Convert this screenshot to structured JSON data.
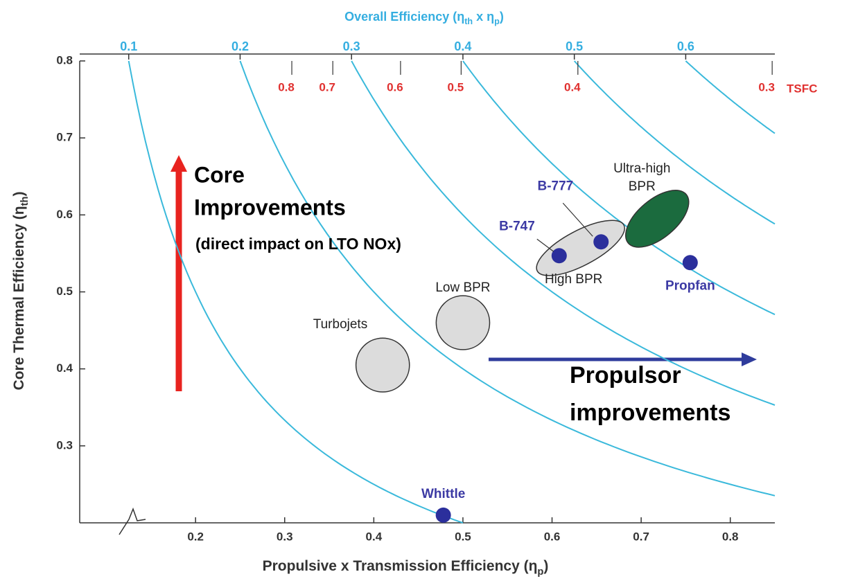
{
  "chart_data": {
    "type": "scatter",
    "title": [
      "Overall Efficiency (η",
      "th",
      " x η",
      "p",
      ")"
    ],
    "xlabel": [
      "Propulsive x Transmission Efficiency (η",
      "p",
      ")"
    ],
    "ylabel": [
      "Core Thermal Efficiency (η",
      "th",
      ")"
    ],
    "xlim": [
      0.07,
      0.85
    ],
    "ylim": [
      0.2,
      0.8
    ],
    "xticks": [
      0.2,
      0.3,
      0.4,
      0.5,
      0.6,
      0.7,
      0.8
    ],
    "yticks": [
      0.3,
      0.4,
      0.5,
      0.6,
      0.7,
      0.8
    ],
    "contours": [
      0.1,
      0.2,
      0.3,
      0.4,
      0.5,
      0.6
    ],
    "contour_color": "#3ab9db",
    "tsfc_label": "TSFC",
    "tsfc_ticks": [
      {
        "value": 0.8,
        "at": 0.308
      },
      {
        "value": 0.7,
        "at": 0.354
      },
      {
        "value": 0.6,
        "at": 0.43
      },
      {
        "value": 0.5,
        "at": 0.498
      },
      {
        "value": 0.4,
        "at": 0.629
      },
      {
        "value": 0.3,
        "at": 0.847
      }
    ],
    "points": [
      {
        "name": "Whittle",
        "x": 0.478,
        "y": 0.21
      },
      {
        "name": "Propfan",
        "x": 0.755,
        "y": 0.538
      },
      {
        "name": "B-747",
        "x": 0.608,
        "y": 0.547
      },
      {
        "name": "B-777",
        "x": 0.655,
        "y": 0.565
      }
    ],
    "point_color": "#2b2f9c",
    "regions": [
      {
        "name": "Turbojets",
        "x": 0.41,
        "y": 0.405,
        "width": 0.06,
        "height": 0.07,
        "angle": 0,
        "color": "#dcdcdc"
      },
      {
        "name": "Low BPR",
        "x": 0.5,
        "y": 0.46,
        "width": 0.06,
        "height": 0.07,
        "angle": 0,
        "color": "#dcdcdc"
      },
      {
        "name": "High BPR",
        "x": 0.632,
        "y": 0.557,
        "width": 0.11,
        "height": 0.045,
        "angle": -28,
        "color": "#dcdcdc"
      },
      {
        "name": "Ultra-high BPR",
        "x": 0.718,
        "y": 0.595,
        "width": 0.085,
        "height": 0.05,
        "angle": -40,
        "color": "#1b6b3e"
      }
    ],
    "annotations": {
      "core": [
        "Core",
        "Improvements",
        "(direct impact on LTO NOx)"
      ],
      "propulsor": [
        "Propulsor",
        "improvements"
      ]
    }
  }
}
